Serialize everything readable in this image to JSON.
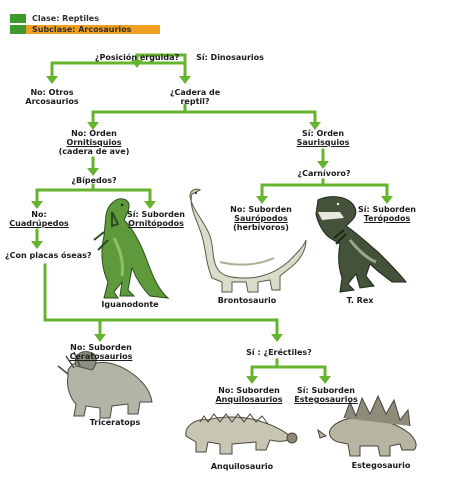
{
  "header": {
    "clase": "Clase: Reptiles",
    "subclase": "Subclase: Arcosaurios",
    "clase_color": "#3e9a2e",
    "subclase_color": "#f0a020"
  },
  "colors": {
    "arrow": "#66b32e",
    "arrow_dark": "#4f9a1f"
  },
  "nodes": {
    "posicion": "¿Posición erguida?",
    "no_otros": [
      "No: Otros",
      "Arcosaurios"
    ],
    "si_dino": "Sí: Dinosaurios",
    "cadera_q": [
      "¿Cadera de",
      "reptil?"
    ],
    "ornitisquios": [
      "No: Orden",
      "Ornitisquios",
      "(cadera de ave)"
    ],
    "saurisquios": [
      "Sí: Orden",
      "Saurisquios"
    ],
    "bipedos": "¿Bípedos?",
    "carnivoro": "¿Carnívoro?",
    "cuadrupedos": [
      "No:",
      "Cuadrúpedos"
    ],
    "ornitopodos": [
      "Sí: Suborden",
      "Ornitópodos"
    ],
    "sauropodos": [
      "No: Suborden",
      "Saurópodos",
      "(herbívoros)"
    ],
    "teropodos": [
      "Sí: Suborden",
      "Terópodos"
    ],
    "placas_q": "¿Con placas óseas?",
    "ceratosaurios": [
      "No: Suborden",
      "Ceratosaurios"
    ],
    "erectiles_q": "Sí : ¿Eréctiles?",
    "anquilosaurios": [
      "No: Suborden",
      "Anquilosaurios"
    ],
    "estegosaurios": [
      "Sí: Suborden",
      "Estegosaurios"
    ]
  },
  "animals": {
    "iguanodonte": "Iguanodonte",
    "brontosaurio": "Brontosaurio",
    "trex": "T. Rex",
    "triceratops": "Triceratops",
    "anquilosaurio": "Anquilosaurio",
    "estegosaurio": "Estegosaurio"
  }
}
